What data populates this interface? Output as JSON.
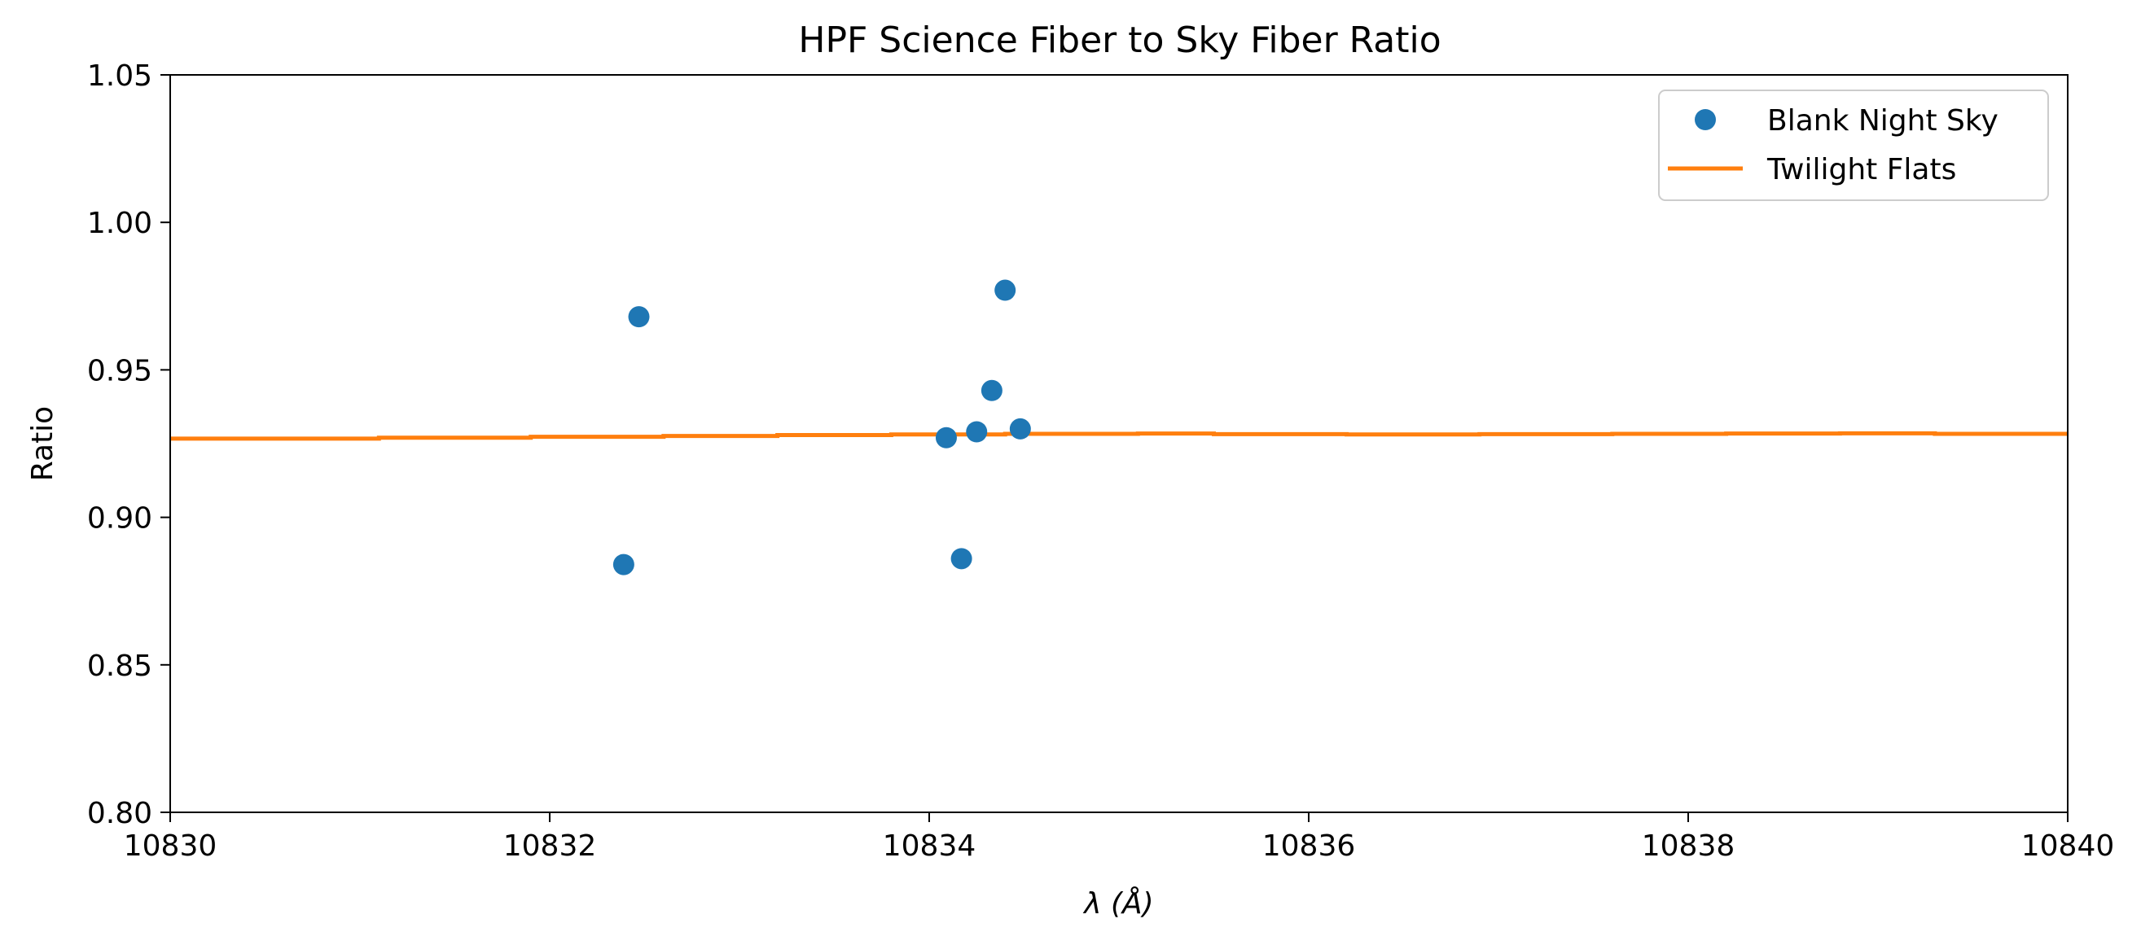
{
  "chart_data": {
    "type": "scatter",
    "title": "HPF Science Fiber to Sky Fiber Ratio",
    "xlabel": "λ (Å)",
    "ylabel": "Ratio",
    "xlim": [
      10830,
      10840
    ],
    "ylim": [
      0.8,
      1.05
    ],
    "xticks": [
      10830,
      10832,
      10834,
      10836,
      10838,
      10840
    ],
    "xtick_labels": [
      "10830",
      "10832",
      "10834",
      "10836",
      "10838",
      "10840"
    ],
    "yticks": [
      0.8,
      0.85,
      0.9,
      0.95,
      1.0,
      1.05
    ],
    "ytick_labels": [
      "0.80",
      "0.85",
      "0.90",
      "0.95",
      "1.00",
      "1.05"
    ],
    "grid": false,
    "legend_position": "top-right",
    "series": [
      {
        "name": "Blank Night Sky",
        "kind": "scatter",
        "color": "#1f77b4",
        "x": [
          10832.39,
          10832.47,
          10834.09,
          10834.17,
          10834.25,
          10834.33,
          10834.4,
          10834.48
        ],
        "y": [
          0.884,
          0.968,
          0.927,
          0.886,
          0.929,
          0.943,
          0.977,
          0.93
        ]
      },
      {
        "name": "Twilight Flats",
        "kind": "step-line",
        "color": "#ff7f0e",
        "x": [
          10830.0,
          10831.1,
          10831.9,
          10832.6,
          10833.2,
          10833.8,
          10834.4,
          10835.1,
          10835.5,
          10836.2,
          10836.9,
          10837.6,
          10838.2,
          10838.8,
          10839.3,
          10840.0
        ],
        "y": [
          0.9267,
          0.927,
          0.9273,
          0.9276,
          0.9279,
          0.9281,
          0.9283,
          0.9284,
          0.9282,
          0.9281,
          0.9282,
          0.9283,
          0.9284,
          0.9285,
          0.9283,
          0.9283
        ]
      }
    ]
  }
}
